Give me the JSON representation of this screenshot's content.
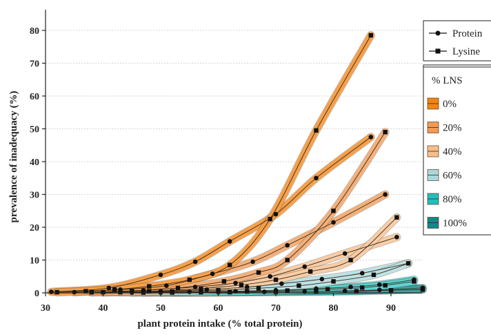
{
  "chart_data": {
    "type": "line",
    "title": "",
    "xlabel": "plant protein intake (% total protein)",
    "ylabel": "prevalence of inadequacy (%)",
    "xlim": [
      30,
      96
    ],
    "ylim": [
      0,
      84
    ],
    "xticks": [
      30,
      40,
      50,
      60,
      70,
      80,
      90
    ],
    "yticks": [
      0,
      10,
      20,
      30,
      40,
      50,
      60,
      70,
      80
    ],
    "grid": "horizontal",
    "legend_placement": "top-right",
    "marker_legend": [
      {
        "label": "Protein",
        "marker": "circle"
      },
      {
        "label": "Lysine",
        "marker": "square"
      }
    ],
    "fill_legend_title": "% LNS",
    "series": [
      {
        "name": "0%",
        "color": "#F28512",
        "band_color": "#F5A04A",
        "protein": {
          "x": [
            31,
            41,
            50,
            56,
            62,
            70,
            77,
            86.5
          ],
          "y": [
            0.3,
            1.5,
            5.5,
            9.5,
            15.7,
            24,
            35,
            47.5
          ]
        },
        "lysine": {
          "x": [
            32,
            37,
            42,
            48,
            55,
            62,
            69,
            77,
            86.5
          ],
          "y": [
            0.2,
            0.5,
            1,
            2,
            4,
            8.5,
            22.5,
            49.5,
            78.5
          ]
        }
      },
      {
        "name": "20%",
        "color": "#F09A55",
        "band_color": "#F3B07A",
        "protein": {
          "x": [
            35,
            43,
            51,
            59,
            66,
            72,
            80,
            89
          ],
          "y": [
            0.2,
            1,
            2.2,
            5.8,
            9.5,
            14.5,
            21.5,
            30
          ]
        },
        "lysine": {
          "x": [
            38,
            45,
            53,
            61,
            67,
            72,
            80,
            89
          ],
          "y": [
            0.2,
            0.6,
            1.5,
            3.5,
            6.2,
            10,
            25,
            49
          ]
        }
      },
      {
        "name": "40%",
        "color": "#F6BE8E",
        "band_color": "#F8CDA6",
        "protein": {
          "x": [
            38,
            47,
            56,
            63,
            69,
            75,
            82,
            91
          ],
          "y": [
            0.2,
            0.8,
            1.8,
            3,
            5,
            8,
            12,
            17
          ]
        },
        "lysine": {
          "x": [
            40,
            48,
            57,
            64,
            70,
            76,
            83,
            91
          ],
          "y": [
            0.2,
            0.5,
            1.3,
            2.4,
            4,
            6.5,
            10,
            23
          ]
        }
      },
      {
        "name": "60%",
        "color": "#A9D8DC",
        "band_color": "#BCE2E5",
        "protein": {
          "x": [
            40,
            50,
            58,
            65,
            71,
            78,
            85,
            93
          ],
          "y": [
            0.2,
            0.5,
            1,
            1.8,
            2.8,
            4.2,
            6,
            9
          ]
        },
        "lysine": {
          "x": [
            43,
            52,
            60,
            67,
            74,
            80,
            87,
            93
          ],
          "y": [
            0.2,
            0.4,
            0.8,
            1.4,
            2.2,
            3.5,
            5.5,
            9
          ]
        }
      },
      {
        "name": "80%",
        "color": "#1FBFBF",
        "band_color": "#5ED3D3",
        "protein": {
          "x": [
            45,
            55,
            63,
            70,
            77,
            83,
            88,
            94
          ],
          "y": [
            0.1,
            0.3,
            0.5,
            0.8,
            1.3,
            1.8,
            2.5,
            4
          ]
        },
        "lysine": {
          "x": [
            47,
            57,
            65,
            72,
            79,
            85,
            89,
            94
          ],
          "y": [
            0.1,
            0.2,
            0.4,
            0.7,
            1.1,
            1.6,
            2.3,
            3.5
          ]
        }
      },
      {
        "name": "100%",
        "color": "#12888C",
        "band_color": "#3FA3A6",
        "protein": {
          "x": [
            50,
            60,
            68,
            75,
            82,
            88,
            95.5
          ],
          "y": [
            0.1,
            0.2,
            0.3,
            0.4,
            0.6,
            0.9,
            1.5
          ]
        },
        "lysine": {
          "x": [
            52,
            62,
            70,
            77,
            84,
            90,
            95.5
          ],
          "y": [
            0.1,
            0.2,
            0.3,
            0.4,
            0.5,
            0.8,
            1
          ]
        }
      }
    ]
  }
}
